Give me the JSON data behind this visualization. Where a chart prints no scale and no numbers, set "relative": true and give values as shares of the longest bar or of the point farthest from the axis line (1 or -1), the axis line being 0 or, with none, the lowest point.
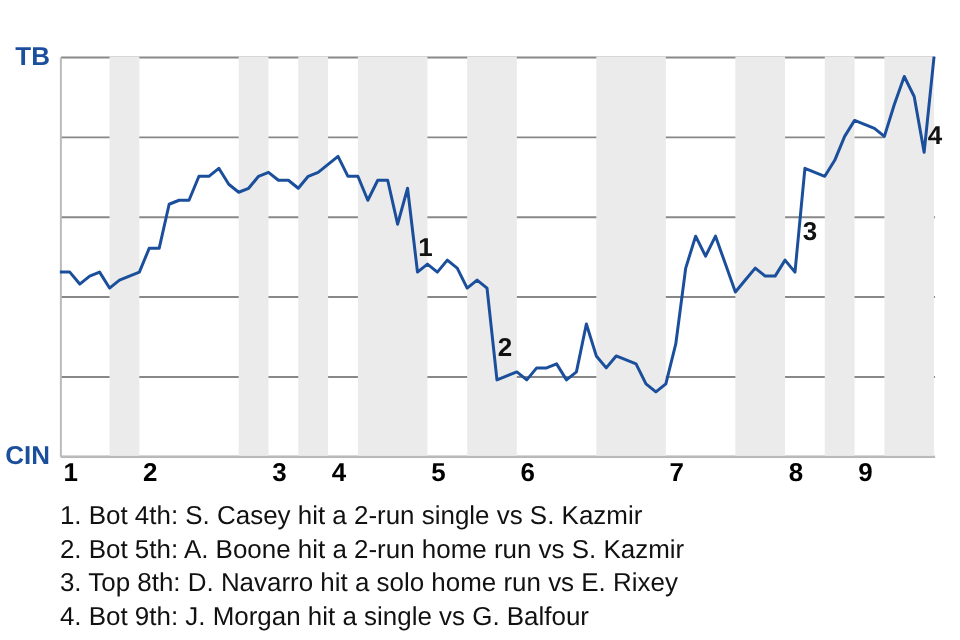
{
  "chart_data": {
    "type": "line",
    "categories": [
      null,
      "1",
      null,
      null,
      null,
      null,
      null,
      null,
      null,
      "2",
      null,
      null,
      null,
      null,
      null,
      null,
      null,
      null,
      null,
      null,
      null,
      null,
      "3",
      null,
      null,
      null,
      null,
      null,
      "4",
      null,
      null,
      null,
      null,
      null,
      null,
      null,
      null,
      null,
      "5",
      null,
      null,
      null,
      null,
      null,
      null,
      null,
      null,
      "6",
      null,
      null,
      null,
      null,
      null,
      null,
      null,
      null,
      null,
      null,
      null,
      null,
      null,
      null,
      "7",
      null,
      null,
      null,
      null,
      null,
      null,
      null,
      null,
      null,
      null,
      null,
      "8",
      null,
      null,
      null,
      null,
      null,
      null,
      "9",
      null,
      null,
      null,
      null,
      null,
      null,
      null
    ],
    "relative": true,
    "series": [
      {
        "color": "#1b4f9c",
        "values": [
          0.46,
          0.46,
          0.43,
          0.45,
          0.46,
          0.42,
          0.44,
          0.45,
          0.46,
          0.52,
          0.52,
          0.63,
          0.64,
          0.64,
          0.7,
          0.7,
          0.72,
          0.68,
          0.66,
          0.67,
          0.7,
          0.71,
          0.69,
          0.69,
          0.67,
          0.7,
          0.71,
          0.73,
          0.75,
          0.7,
          0.7,
          0.64,
          0.69,
          0.69,
          0.58,
          0.67,
          0.46,
          0.48,
          0.46,
          0.49,
          0.47,
          0.42,
          0.44,
          0.42,
          0.19,
          0.2,
          0.21,
          0.19,
          0.22,
          0.22,
          0.23,
          0.19,
          0.21,
          0.33,
          0.25,
          0.22,
          0.25,
          0.24,
          0.23,
          0.18,
          0.16,
          0.18,
          0.28,
          0.47,
          0.55,
          0.5,
          0.55,
          0.48,
          0.41,
          0.44,
          0.47,
          0.45,
          0.45,
          0.49,
          0.46,
          0.72,
          0.71,
          0.7,
          0.74,
          0.8,
          0.84,
          0.83,
          0.82,
          0.8,
          0.88,
          0.95,
          0.9,
          0.76,
          1.0
        ]
      }
    ],
    "grid": "y",
    "annotations": [
      "TB",
      "CIN",
      {
        "text": "1",
        "y": 0.52
      },
      {
        "text": "2",
        "y": 0.27
      },
      {
        "text": "3",
        "y": 0.56
      },
      {
        "text": "4",
        "y": 0.8
      },
      "1. Bot 4th: S. Casey hit a 2-run single vs S. Kazmir",
      "2. Bot 5th: A. Boone hit a 2-run home run vs S. Kazmir",
      "3. Top 8th: D. Navarro hit a solo home run vs E. Rixey",
      "4. Bot 9th: J. Morgan hit a single vs G. Balfour"
    ]
  }
}
